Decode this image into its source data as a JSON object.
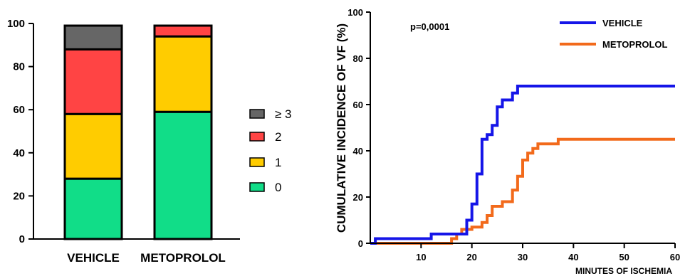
{
  "chart_data": [
    {
      "type": "bar",
      "stacked": true,
      "categories": [
        "VEHICLE",
        "METOPROLOL"
      ],
      "series": [
        {
          "name": "0",
          "color": "#11dd88",
          "values": [
            28,
            59
          ]
        },
        {
          "name": "1",
          "color": "#ffcc00",
          "values": [
            30,
            35
          ]
        },
        {
          "name": "2",
          "color": "#ff4444",
          "values": [
            30,
            5
          ]
        },
        {
          "name": "≥ 3",
          "color": "#666666",
          "values": [
            11,
            0
          ]
        }
      ],
      "ylim": [
        0,
        100
      ],
      "yticks": [
        "0",
        "20",
        "40",
        "60",
        "80",
        "100"
      ],
      "grid": false,
      "legend": "right"
    },
    {
      "type": "line",
      "step": true,
      "annotation": "p=0,0001",
      "ylabel": "CUMULATIVE INCIDENCE OF VF (%)",
      "xlabel": "MINUTES OF ISCHEMIA",
      "xlim": [
        0,
        60
      ],
      "ylim": [
        0,
        100
      ],
      "xticks": [
        "10",
        "20",
        "30",
        "40",
        "50",
        "60"
      ],
      "yticks": [
        "0",
        "20",
        "40",
        "60",
        "80",
        "100"
      ],
      "grid": false,
      "legend": "top-right",
      "series": [
        {
          "name": "VEHICLE",
          "color": "#1515e8",
          "points": [
            [
              0,
              0
            ],
            [
              1,
              0
            ],
            [
              1,
              2
            ],
            [
              12,
              2
            ],
            [
              12,
              4
            ],
            [
              19,
              4
            ],
            [
              19,
              10
            ],
            [
              20,
              10
            ],
            [
              20,
              17
            ],
            [
              21,
              17
            ],
            [
              21,
              30
            ],
            [
              22,
              30
            ],
            [
              22,
              45
            ],
            [
              23,
              45
            ],
            [
              23,
              47
            ],
            [
              24,
              47
            ],
            [
              24,
              51
            ],
            [
              25,
              51
            ],
            [
              25,
              59
            ],
            [
              26,
              59
            ],
            [
              26,
              62
            ],
            [
              28,
              62
            ],
            [
              28,
              65
            ],
            [
              29,
              65
            ],
            [
              29,
              68
            ],
            [
              60,
              68
            ]
          ]
        },
        {
          "name": "METOPROLOL",
          "color": "#f26a1b",
          "points": [
            [
              0,
              0
            ],
            [
              16,
              0
            ],
            [
              16,
              2
            ],
            [
              17,
              2
            ],
            [
              17,
              4
            ],
            [
              18,
              4
            ],
            [
              18,
              6
            ],
            [
              20,
              6
            ],
            [
              20,
              7
            ],
            [
              22,
              7
            ],
            [
              22,
              9
            ],
            [
              23,
              9
            ],
            [
              23,
              12
            ],
            [
              24,
              12
            ],
            [
              24,
              16
            ],
            [
              26,
              16
            ],
            [
              26,
              18
            ],
            [
              28,
              18
            ],
            [
              28,
              23
            ],
            [
              29,
              23
            ],
            [
              29,
              29
            ],
            [
              30,
              29
            ],
            [
              30,
              36
            ],
            [
              31,
              36
            ],
            [
              31,
              39
            ],
            [
              32,
              39
            ],
            [
              32,
              41
            ],
            [
              33,
              41
            ],
            [
              33,
              43
            ],
            [
              37,
              43
            ],
            [
              37,
              45
            ],
            [
              60,
              45
            ]
          ]
        }
      ]
    }
  ]
}
